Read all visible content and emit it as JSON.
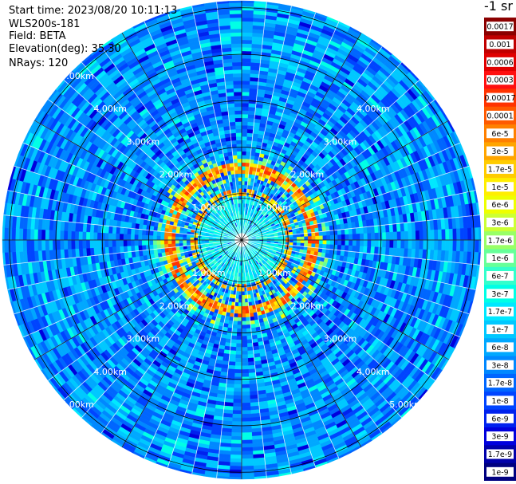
{
  "header": {
    "start_time": "Start time: 2023/08/20 10:11:13",
    "device": "WLS200s-181",
    "field": "Field: BETA",
    "elevation": "Elevation(deg): 35.30",
    "nrays": "NRays: 120"
  },
  "units_label": "-1 sr",
  "chart_data": {
    "type": "ppi-polar",
    "field": "BETA",
    "elevation_deg": 35.3,
    "n_rays": 120,
    "range_rings_km": [
      1.0,
      2.0,
      3.0,
      4.0,
      5.0
    ],
    "ring_label_text": [
      "1.00km",
      "2.00km",
      "3.00km",
      "4.00km",
      "5.00km"
    ],
    "radial_spokes_deg": [
      0,
      30,
      60,
      90,
      120,
      150,
      180,
      210,
      240,
      270,
      300,
      330
    ],
    "colorbar": [
      {
        "label": "0.0017",
        "color": "#8b0000"
      },
      {
        "label": "0.001",
        "color": "#c00000"
      },
      {
        "label": "0.0006",
        "color": "#e00000"
      },
      {
        "label": "0.0003",
        "color": "#ff1010"
      },
      {
        "label": "0.00017",
        "color": "#ff3300"
      },
      {
        "label": "0.0001",
        "color": "#ff5a00"
      },
      {
        "label": "6e-5",
        "color": "#ff8000"
      },
      {
        "label": "3e-5",
        "color": "#ffa500"
      },
      {
        "label": "1.7e-5",
        "color": "#ffcc00"
      },
      {
        "label": "1e-5",
        "color": "#ffee00"
      },
      {
        "label": "6e-6",
        "color": "#eeff00"
      },
      {
        "label": "3e-6",
        "color": "#ccff33"
      },
      {
        "label": "1.7e-6",
        "color": "#99ff66"
      },
      {
        "label": "1e-6",
        "color": "#66ff99"
      },
      {
        "label": "6e-7",
        "color": "#33ffcc"
      },
      {
        "label": "3e-7",
        "color": "#00ffe6"
      },
      {
        "label": "1.7e-7",
        "color": "#00e8ff"
      },
      {
        "label": "1e-7",
        "color": "#00c8ff"
      },
      {
        "label": "6e-8",
        "color": "#00a8ff"
      },
      {
        "label": "3e-8",
        "color": "#0088ff"
      },
      {
        "label": "1.7e-8",
        "color": "#0066ff"
      },
      {
        "label": "1e-8",
        "color": "#0044ff"
      },
      {
        "label": "6e-9",
        "color": "#0022ee"
      },
      {
        "label": "3e-9",
        "color": "#0000dd"
      },
      {
        "label": "1.7e-9",
        "color": "#0000aa"
      },
      {
        "label": "1e-9",
        "color": "#000080"
      }
    ]
  }
}
